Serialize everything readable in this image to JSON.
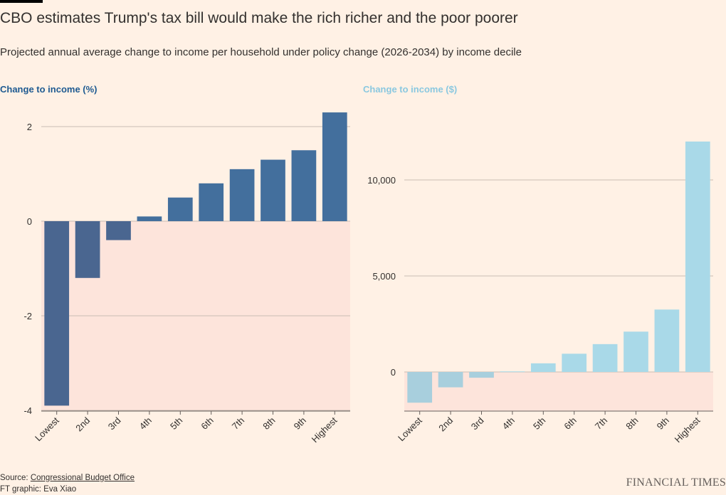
{
  "title": "CBO estimates Trump's tax bill would make the rich richer and the poor poorer",
  "subtitle": "Projected annual average change to income per household under policy change (2026-2034) by income decile",
  "colors": {
    "background": "#fff1e5",
    "negative_region": "#fde4db",
    "pct_pos": "#436f9d",
    "pct_neg": "#4a6690",
    "dollar_pos": "#a9d9e8",
    "dollar_neg": "#a8cfdd",
    "pct_title": "#1e5a91",
    "dollar_title": "#8ac8e0",
    "gridline": "#c9bdb3"
  },
  "chart_data": [
    {
      "type": "bar",
      "title": "Change to income (%)",
      "categories": [
        "Lowest",
        "2nd",
        "3rd",
        "4th",
        "5th",
        "6th",
        "7th",
        "8th",
        "9th",
        "Highest"
      ],
      "values": [
        -3.9,
        -1.2,
        -0.4,
        0.1,
        0.5,
        0.8,
        1.1,
        1.3,
        1.5,
        2.3
      ],
      "ylim": [
        -4,
        2.5
      ],
      "yticks": [
        2,
        0,
        -2,
        -4
      ],
      "ytick_labels": [
        "2",
        "0",
        "-2",
        "-4"
      ],
      "grid": true
    },
    {
      "type": "bar",
      "title": "Change to income ($)",
      "categories": [
        "Lowest",
        "2nd",
        "3rd",
        "4th",
        "5th",
        "6th",
        "7th",
        "8th",
        "9th",
        "Highest"
      ],
      "values": [
        -1600,
        -800,
        -300,
        30,
        450,
        950,
        1450,
        2100,
        3250,
        12000
      ],
      "ylim": [
        -2000,
        13000
      ],
      "yticks": [
        10000,
        5000,
        0
      ],
      "ytick_labels": [
        "10,000",
        "5,000",
        "0"
      ],
      "grid": true
    }
  ],
  "source": {
    "label": "Source: ",
    "link_text": "Congressional Budget Office",
    "credit": "FT graphic: Eva Xiao"
  },
  "brand": "FINANCIAL TIMES"
}
